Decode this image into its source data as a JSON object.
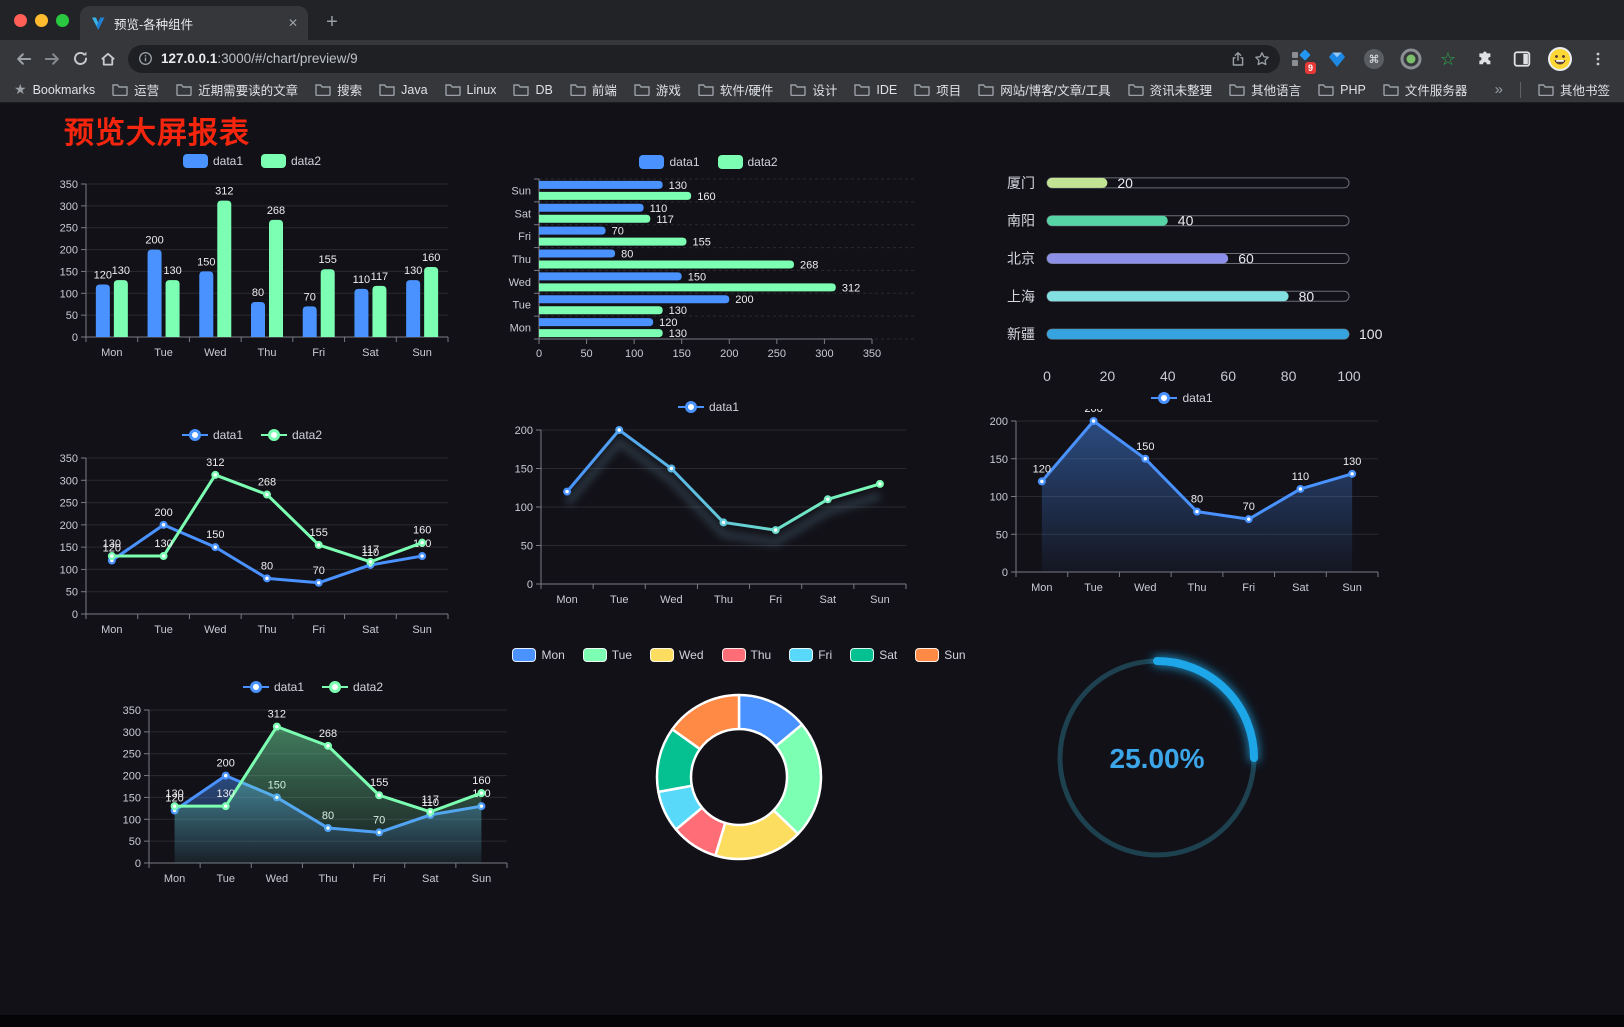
{
  "browser": {
    "traffic_lights": [
      "#ff5f57",
      "#febc2e",
      "#28c840"
    ],
    "tab": {
      "title": "预览-各种组件",
      "close_label": "✕",
      "new_tab_label": "+"
    },
    "address": {
      "host": "127.0.0.1",
      "path": ":3000/#/chart/preview/9"
    },
    "extensions_badge": "9",
    "bookmarks": {
      "root_label": "Bookmarks",
      "folders": [
        "运营",
        "近期需要读的文章",
        "搜索",
        "Java",
        "Linux",
        "DB",
        "前端",
        "游戏",
        "软件/硬件",
        "设计",
        "IDE",
        "项目",
        "网站/博客/文章/工具",
        "资讯未整理",
        "其他语言",
        "PHP",
        "文件服务器"
      ],
      "overflow_label": "»",
      "other_label": "其他书签"
    }
  },
  "page": {
    "title": "预览大屏报表",
    "title_color": "#f5260d"
  },
  "chart_data": [
    {
      "type": "bar",
      "legend": "rect",
      "value_labels": true,
      "categories": [
        "Mon",
        "Tue",
        "Wed",
        "Thu",
        "Fri",
        "Sat",
        "Sun"
      ],
      "series": [
        {
          "name": "data1",
          "color": "#4992ff",
          "values": [
            120,
            200,
            150,
            80,
            70,
            110,
            130
          ]
        },
        {
          "name": "data2",
          "color": "#7cffb2",
          "values": [
            130,
            130,
            312,
            268,
            155,
            117,
            160
          ]
        }
      ],
      "ylim": [
        0,
        350
      ],
      "ytick_step": 50
    },
    {
      "type": "bar-horizontal",
      "legend": "rect",
      "value_labels": true,
      "categories": [
        "Mon",
        "Tue",
        "Wed",
        "Thu",
        "Fri",
        "Sat",
        "Sun"
      ],
      "series": [
        {
          "name": "data1",
          "color": "#4992ff",
          "values": [
            120,
            200,
            150,
            80,
            70,
            110,
            130
          ]
        },
        {
          "name": "data2",
          "color": "#7cffb2",
          "values": [
            130,
            130,
            312,
            268,
            155,
            117,
            160
          ]
        }
      ],
      "xlim": [
        0,
        350
      ],
      "xtick_step": 50
    },
    {
      "type": "progress",
      "rows": [
        {
          "label": "厦门",
          "value": 20,
          "color": "#c2e393"
        },
        {
          "label": "南阳",
          "value": 40,
          "color": "#57d4a6"
        },
        {
          "label": "北京",
          "value": 60,
          "color": "#8d90e9"
        },
        {
          "label": "上海",
          "value": 80,
          "color": "#83e0e0"
        },
        {
          "label": "新疆",
          "value": 100,
          "color": "#35a3dd"
        }
      ],
      "xlim": [
        0,
        100
      ],
      "xticks": [
        0,
        20,
        40,
        60,
        80,
        100
      ]
    },
    {
      "type": "line",
      "legend": "line",
      "value_labels": true,
      "categories": [
        "Mon",
        "Tue",
        "Wed",
        "Thu",
        "Fri",
        "Sat",
        "Sun"
      ],
      "series": [
        {
          "name": "data1",
          "color": "#4992ff",
          "values": [
            120,
            200,
            150,
            80,
            70,
            110,
            130
          ]
        },
        {
          "name": "data2",
          "color": "#7cffb2",
          "values": [
            130,
            130,
            312,
            268,
            155,
            117,
            160
          ]
        }
      ],
      "ylim": [
        0,
        350
      ],
      "ytick_step": 50
    },
    {
      "type": "line",
      "legend": "line",
      "value_labels": false,
      "shadow": true,
      "categories": [
        "Mon",
        "Tue",
        "Wed",
        "Thu",
        "Fri",
        "Sat",
        "Sun"
      ],
      "gradient": [
        "#4992ff",
        "#7cffb2"
      ],
      "series": [
        {
          "name": "data1",
          "values": [
            120,
            200,
            150,
            80,
            70,
            110,
            130
          ]
        }
      ],
      "ylim": [
        0,
        200
      ],
      "ytick_step": 50
    },
    {
      "type": "line",
      "legend": "line",
      "value_labels": true,
      "area": true,
      "categories": [
        "Mon",
        "Tue",
        "Wed",
        "Thu",
        "Fri",
        "Sat",
        "Sun"
      ],
      "series": [
        {
          "name": "data1",
          "color": "#4992ff",
          "values": [
            120,
            200,
            150,
            80,
            70,
            110,
            130
          ]
        }
      ],
      "ylim": [
        0,
        200
      ],
      "ytick_step": 50
    },
    {
      "type": "line",
      "legend": "line",
      "value_labels": true,
      "area": true,
      "categories": [
        "Mon",
        "Tue",
        "Wed",
        "Thu",
        "Fri",
        "Sat",
        "Sun"
      ],
      "series": [
        {
          "name": "data1",
          "color": "#4992ff",
          "values": [
            120,
            200,
            150,
            80,
            70,
            110,
            130
          ]
        },
        {
          "name": "data2",
          "color": "#7cffb2",
          "values": [
            130,
            130,
            312,
            268,
            155,
            117,
            160
          ]
        }
      ],
      "ylim": [
        0,
        350
      ],
      "ytick_step": 50
    },
    {
      "type": "pie",
      "legend": "rect-bordered",
      "items": [
        {
          "name": "Mon",
          "value": 120,
          "color": "#4992ff"
        },
        {
          "name": "Tue",
          "value": 200,
          "color": "#7cffb2"
        },
        {
          "name": "Wed",
          "value": 150,
          "color": "#fddd60"
        },
        {
          "name": "Thu",
          "value": 80,
          "color": "#ff6e76"
        },
        {
          "name": "Fri",
          "value": 70,
          "color": "#58d9f9"
        },
        {
          "name": "Sat",
          "value": 110,
          "color": "#05c091"
        },
        {
          "name": "Sun",
          "value": 130,
          "color": "#ff8a45"
        }
      ]
    },
    {
      "type": "gauge",
      "percent": 25,
      "display": "25.00%",
      "progress_color": "#1ea7e8",
      "track_color": "#1e4150",
      "text_color": "#3ba6e8"
    }
  ]
}
